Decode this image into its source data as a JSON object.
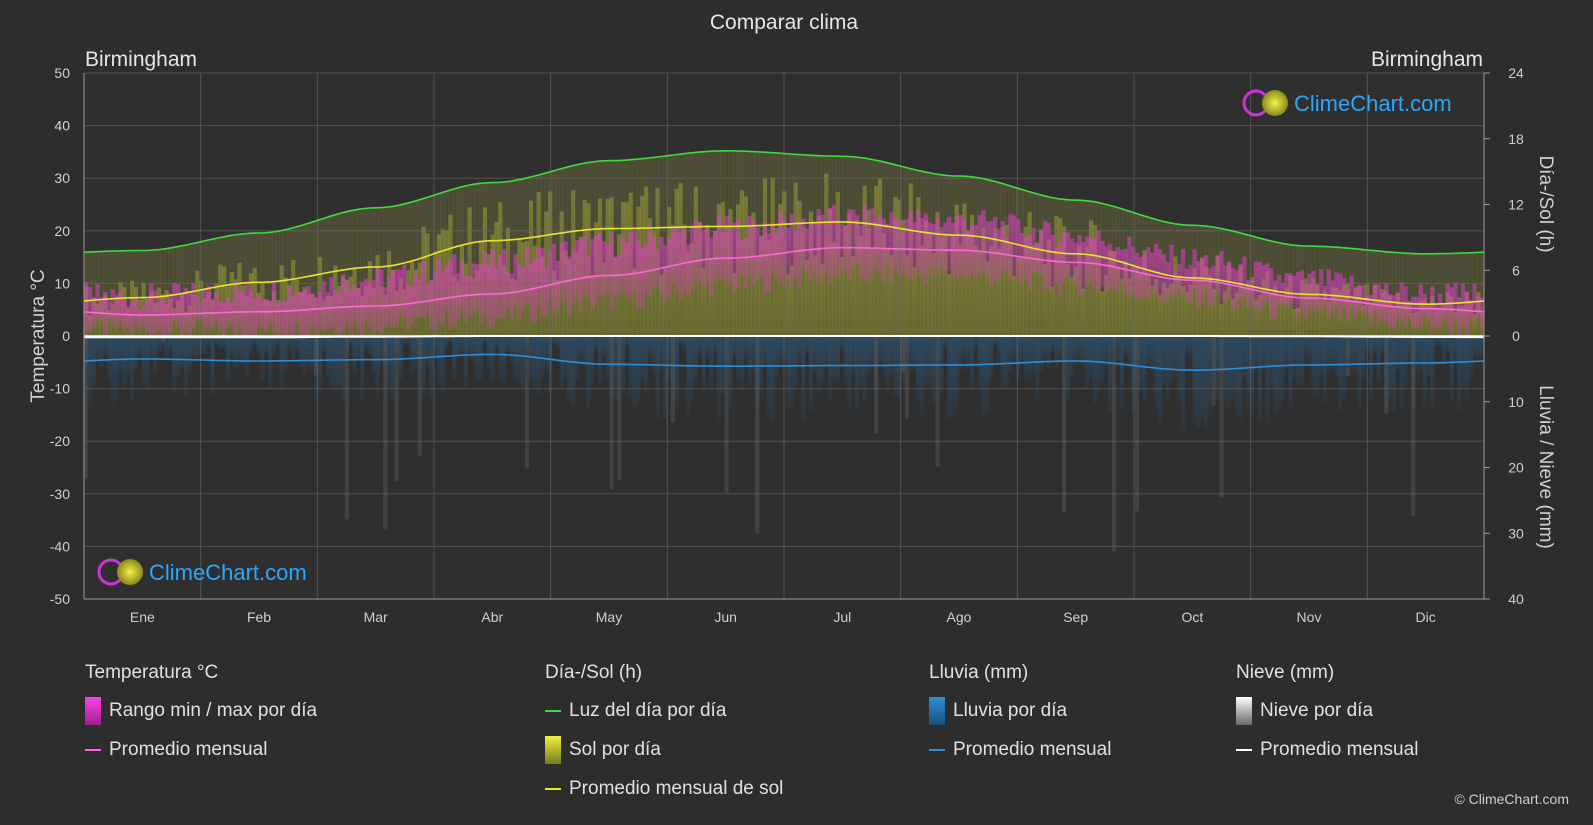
{
  "chart_data": {
    "type": "line",
    "title": "Comparar clima",
    "location_left": "Birmingham",
    "location_right": "Birmingham",
    "months": [
      "Ene",
      "Feb",
      "Mar",
      "Abr",
      "May",
      "Jun",
      "Jul",
      "Ago",
      "Sep",
      "Oct",
      "Nov",
      "Dic"
    ],
    "y_left": {
      "label": "Temperatura °C",
      "range": [
        -50,
        50
      ],
      "ticks": [
        "50",
        "40",
        "30",
        "20",
        "10",
        "0",
        "-10",
        "-20",
        "-30",
        "-40",
        "-50"
      ]
    },
    "y_right_top": {
      "label": "Día-/Sol (h)",
      "range": [
        0,
        24
      ],
      "ticks": [
        "24",
        "18",
        "12",
        "6",
        "0"
      ]
    },
    "y_right_bottom": {
      "label": "Lluvia / Nieve (mm)",
      "range": [
        0,
        40
      ],
      "ticks": [
        "0",
        "10",
        "20",
        "30",
        "40"
      ]
    },
    "series": [
      {
        "name": "Luz del día por día",
        "color": "#3ddc3d",
        "axis": "sun_h",
        "values": [
          7.8,
          9.4,
          11.7,
          14.0,
          16.0,
          16.9,
          16.4,
          14.6,
          12.4,
          10.1,
          8.2,
          7.5
        ]
      },
      {
        "name": "Promedio mensual de sol",
        "color": "#e6e62e",
        "axis": "sun_h",
        "values": [
          3.5,
          4.9,
          6.3,
          8.7,
          9.8,
          10.0,
          10.4,
          9.2,
          7.5,
          5.3,
          3.8,
          2.9
        ]
      },
      {
        "name": "Promedio mensual",
        "color": "#ff66d9",
        "axis": "temp_c",
        "values": [
          4.0,
          4.6,
          5.7,
          8.0,
          11.5,
          14.8,
          16.8,
          16.3,
          14.0,
          10.6,
          7.2,
          5.2
        ]
      },
      {
        "name": "Promedio mensual",
        "color": "#2b8fd9",
        "axis": "rain_mm",
        "values": [
          3.5,
          3.8,
          3.6,
          2.8,
          4.3,
          4.6,
          4.5,
          4.4,
          3.8,
          5.2,
          4.4,
          4.1
        ]
      },
      {
        "name": "Promedio mensual",
        "color": "#ffffff",
        "axis": "snow_mm",
        "values": [
          0.2,
          0.2,
          0.1,
          0,
          0,
          0,
          0,
          0,
          0,
          0,
          0.05,
          0.15
        ]
      }
    ],
    "temp_range_daily": {
      "min": [
        1.0,
        1.0,
        2.0,
        3.5,
        6.5,
        9.5,
        11.5,
        11.5,
        9.5,
        7.0,
        4.0,
        2.0
      ],
      "max": [
        7.5,
        8.5,
        11.0,
        14.0,
        17.5,
        20.5,
        22.5,
        22.0,
        19.0,
        14.5,
        10.5,
        8.0
      ]
    },
    "grid": true,
    "legend_position": "bottom"
  },
  "legend": {
    "temp": {
      "title": "Temperatura °C",
      "items": [
        "Rango min / max por día",
        "Promedio mensual"
      ]
    },
    "sun": {
      "title": "Día-/Sol (h)",
      "items": [
        "Luz del día por día",
        "Sol por día",
        "Promedio mensual de sol"
      ]
    },
    "rain": {
      "title": "Lluvia (mm)",
      "items": [
        "Lluvia por día",
        "Promedio mensual"
      ]
    },
    "snow": {
      "title": "Nieve (mm)",
      "items": [
        "Nieve por día",
        "Promedio mensual"
      ]
    }
  },
  "colors": {
    "daylight": "#3ddc3d",
    "sunshine": "#e6e62e",
    "temp_avg": "#ff66d9",
    "temp_range": "#e020c8",
    "rain": "#2b8fd9",
    "snow": "#cfcfcf",
    "accent_logo": "#2aa7ff"
  },
  "watermark": "ClimeChart.com",
  "copyright": "© ClimeChart.com"
}
